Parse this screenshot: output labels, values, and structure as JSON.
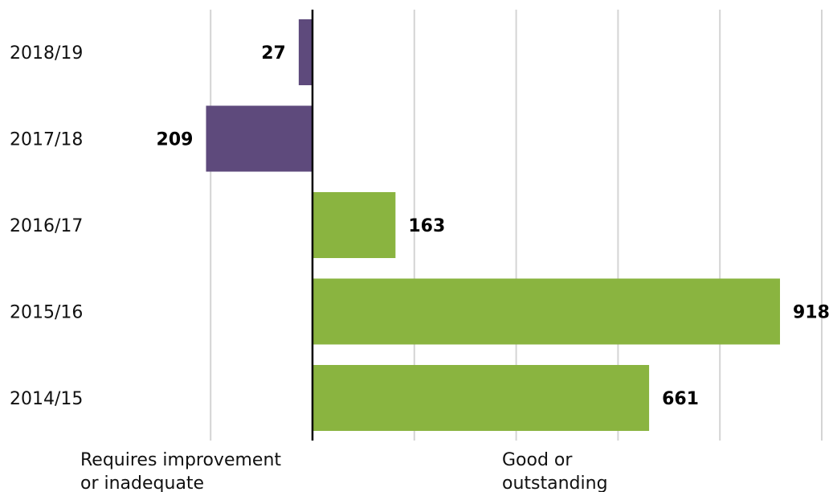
{
  "chart_data": {
    "type": "bar",
    "orientation": "horizontal",
    "categories": [
      "2018/19",
      "2017/18",
      "2016/17",
      "2015/16",
      "2014/15"
    ],
    "values": [
      -27,
      -209,
      163,
      918,
      661
    ],
    "value_labels": [
      "27",
      "209",
      "163",
      "918",
      "661"
    ],
    "xlim": [
      -400,
      1000
    ],
    "gridline_step": 200,
    "grid": true,
    "axis_labels": {
      "negative": [
        "Requires improvement",
        "or inadequate"
      ],
      "positive": [
        "Good or",
        "outstanding"
      ]
    },
    "colors": {
      "negative": "#5e4a7c",
      "positive": "#8ab440",
      "grid": "#d4d4d4",
      "axis": "#000000"
    }
  }
}
